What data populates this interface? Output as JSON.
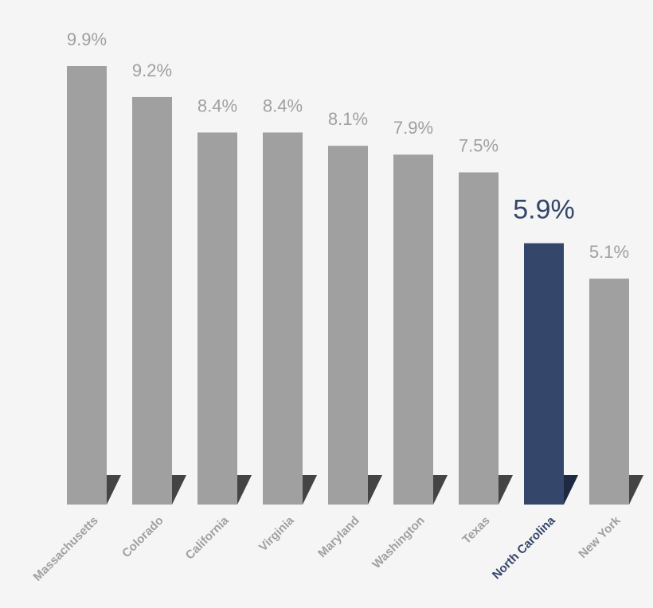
{
  "chart_data": {
    "type": "bar",
    "categories": [
      "Massachusetts",
      "Colorado",
      "California",
      "Virginia",
      "Maryland",
      "Washington",
      "Texas",
      "North Carolina",
      "New York"
    ],
    "values": [
      9.9,
      9.2,
      8.4,
      8.4,
      8.1,
      7.9,
      7.5,
      5.9,
      5.1
    ],
    "value_labels": [
      "9.9%",
      "9.2%",
      "8.4%",
      "8.4%",
      "8.1%",
      "7.9%",
      "7.5%",
      "5.9%",
      "5.1%"
    ],
    "colors": [
      "#a0a0a0",
      "#a0a0a0",
      "#a0a0a0",
      "#a0a0a0",
      "#a0a0a0",
      "#a0a0a0",
      "#a0a0a0",
      "#34466a",
      "#a0a0a0"
    ]
  }
}
